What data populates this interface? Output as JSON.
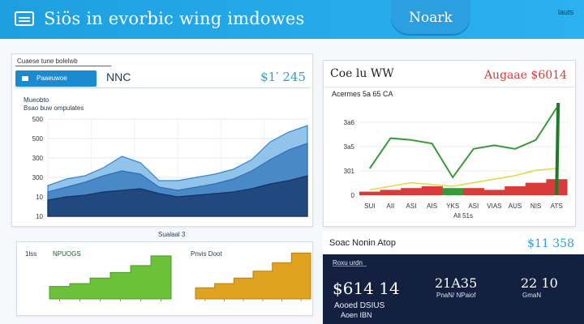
{
  "header": {
    "title": "Siös in evorbic wing imdowes",
    "button_label": "Noark",
    "corner_note": "lauts"
  },
  "main_panel": {
    "tab_caption": "Cuaese tune bolelwb",
    "tab_active_label": "Paaeuwoe",
    "tab_code": "NNC",
    "tab_value": "$1′ 245",
    "chart_title": "Mueobto",
    "chart_subtitle": "Bsao buw ompulates",
    "chart_data": {
      "type": "area",
      "yticks": [
        "500",
        "500",
        "300",
        "300",
        "10",
        "10"
      ],
      "series": [
        {
          "values": [
            38,
            46,
            50,
            60,
            74,
            66,
            44,
            44,
            48,
            52,
            58,
            70,
            92,
            104,
            112
          ]
        },
        {
          "values": [
            30,
            36,
            42,
            50,
            56,
            52,
            36,
            32,
            36,
            40,
            46,
            56,
            70,
            82,
            90
          ]
        },
        {
          "values": [
            20,
            24,
            26,
            30,
            32,
            34,
            28,
            24,
            26,
            28,
            30,
            34,
            40,
            44,
            50
          ]
        }
      ]
    }
  },
  "sub_panel": {
    "left_label": "1lss",
    "chart_title_green": "NPUOGS",
    "chart_title_mid": "Sualaal 3",
    "chart_title_orange": "Pnvis Doot",
    "chart_data": [
      {
        "type": "bar",
        "values": [
          18,
          22,
          30,
          38,
          48,
          62
        ]
      },
      {
        "type": "bar",
        "values": [
          16,
          22,
          30,
          40,
          52,
          66
        ]
      }
    ]
  },
  "right_panel": {
    "title": "Coe lu WW",
    "value": "Augaae $6014",
    "subtitle": "Acermes 5a 65 CA",
    "chart_data": {
      "type": "line",
      "yticks": [
        "3a6",
        "3a5",
        "301",
        "0"
      ],
      "xticks": [
        "SUI",
        "AII",
        "ASI",
        "AIS",
        "YKS",
        "ASI",
        "VIAS",
        "AUS",
        "NIS",
        "ATS"
      ],
      "xlabel": "All 51s",
      "series": [
        {
          "color": "#3a9a3a",
          "values": [
            30,
            64,
            62,
            58,
            20,
            52,
            56,
            52,
            62,
            98
          ]
        },
        {
          "color": "#e6d84a",
          "values": [
            6,
            10,
            14,
            12,
            10,
            14,
            18,
            22,
            28,
            30
          ]
        },
        {
          "color": "#d93a3a",
          "values": [
            4,
            6,
            8,
            10,
            8,
            8,
            6,
            10,
            14,
            18
          ]
        }
      ]
    }
  },
  "dark_panel": {
    "title": "Soac Nonin Atop",
    "value": "$11 358",
    "tag": "Roxu urdn",
    "kpi_main": "$614 14",
    "kpi_main_sub": "Aooed DSIUS",
    "kpi_main_sub2": "Aoen IBN",
    "kpi_2": "21A35",
    "kpi_2_sub": "PnaN/ NPaiof",
    "kpi_3": "22 10",
    "kpi_3_sub": "GmaN"
  }
}
